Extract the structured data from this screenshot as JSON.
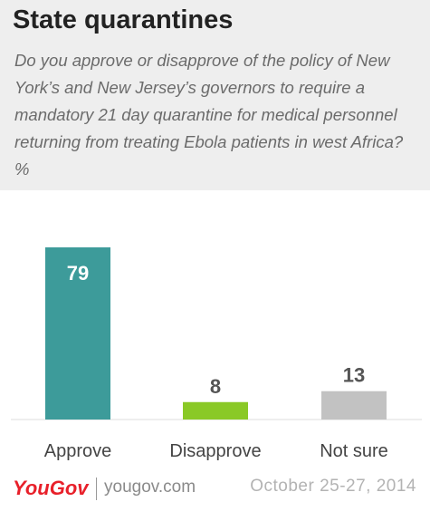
{
  "header": {
    "title": "State quarantines",
    "question": "Do you approve or disapprove of the policy of New York’s and New Jersey’s governors to require a mandatory 21 day quarantine for medical personnel returning from treating Ebola patients in west Africa? %"
  },
  "chart_data": {
    "type": "bar",
    "title": "State quarantines",
    "subtitle": "Do you approve or disapprove of the policy of New York’s and New Jersey’s governors to require a mandatory 21 day quarantine for medical personnel returning from treating Ebola patients in west Africa? %",
    "categories": [
      "Approve",
      "Disapprove",
      "Not sure"
    ],
    "values": [
      79,
      8,
      13
    ],
    "data_labels": [
      "79",
      "8",
      "13"
    ],
    "colors": [
      "#3d9b9a",
      "#8ac926",
      "#c2c2c2"
    ],
    "label_colors": [
      "#ffffff",
      "#555555",
      "#555555"
    ],
    "ylim": [
      0,
      79
    ],
    "grid": false,
    "legend": "none"
  },
  "footer": {
    "logo_text": "YouGov",
    "logo_color": "#e8202a",
    "site": "yougov.com",
    "date": "October 25-27, 2014"
  }
}
